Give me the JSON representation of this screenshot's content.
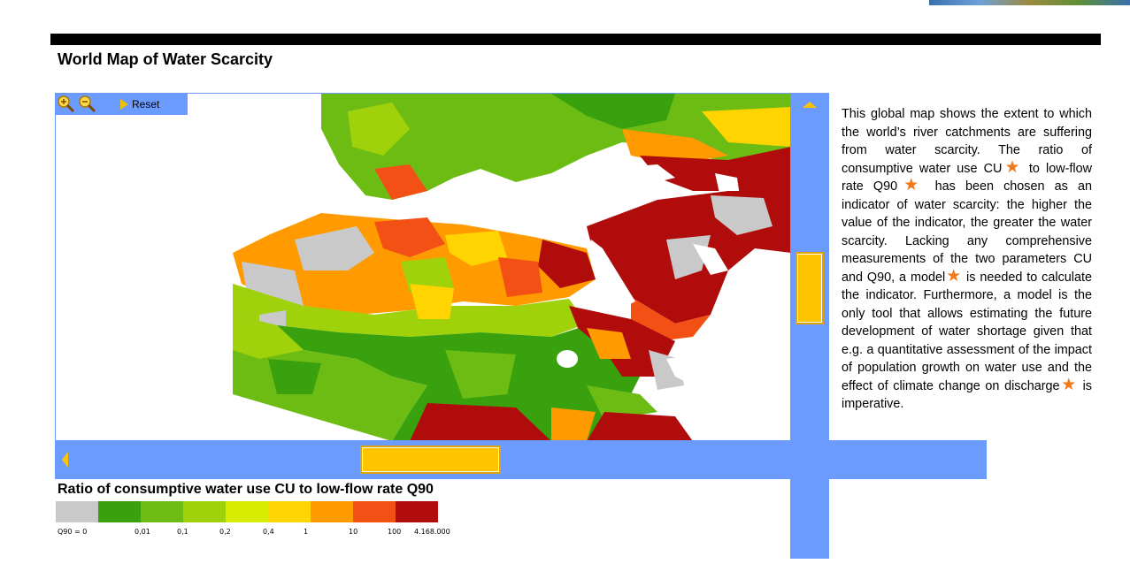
{
  "page": {
    "title": "World Map of Water Scarcity"
  },
  "map": {
    "toolbar": {
      "zoom_in_icon": "zoom-in-icon",
      "zoom_out_icon": "zoom-out-icon",
      "reset_label": "Reset"
    }
  },
  "description": {
    "segments": [
      "This global map shows the extent to which the world’s river catchments are suffering from water scarcity. The ratio of consumptive water use CU",
      " to low-flow rate Q90",
      " has been chosen as an indicator of water scarcity: the higher the value of the indicator, the greater the water scarcity. Lacking any comprehensive measurements of the two parameters CU and Q90, a model",
      " is needed to calculate the indicator. Furthermore, a model is the only tool that allows estimating the future development of water shortage given that e.g. a quantitative assessment of the impact of population growth on water use and the effect of climate change on discharge",
      " is imperative."
    ]
  },
  "legend": {
    "title": "Ratio of consumptive water use CU to low-flow rate Q90",
    "colors": [
      "#c9c9c9",
      "#3aa10e",
      "#6cbc14",
      "#9fd20a",
      "#d7ec00",
      "#ffd400",
      "#ff9a00",
      "#f25014",
      "#b00c0c"
    ],
    "labels": [
      "Q90 = 0",
      "0,01",
      "0,1",
      "0,2",
      "0,4",
      "1",
      "10",
      "100",
      "4.168.000"
    ]
  },
  "colors": {
    "accent": "#6b9bff",
    "thumb": "#ffc400",
    "star": "#f07a1a",
    "header_bar": "#000000"
  }
}
